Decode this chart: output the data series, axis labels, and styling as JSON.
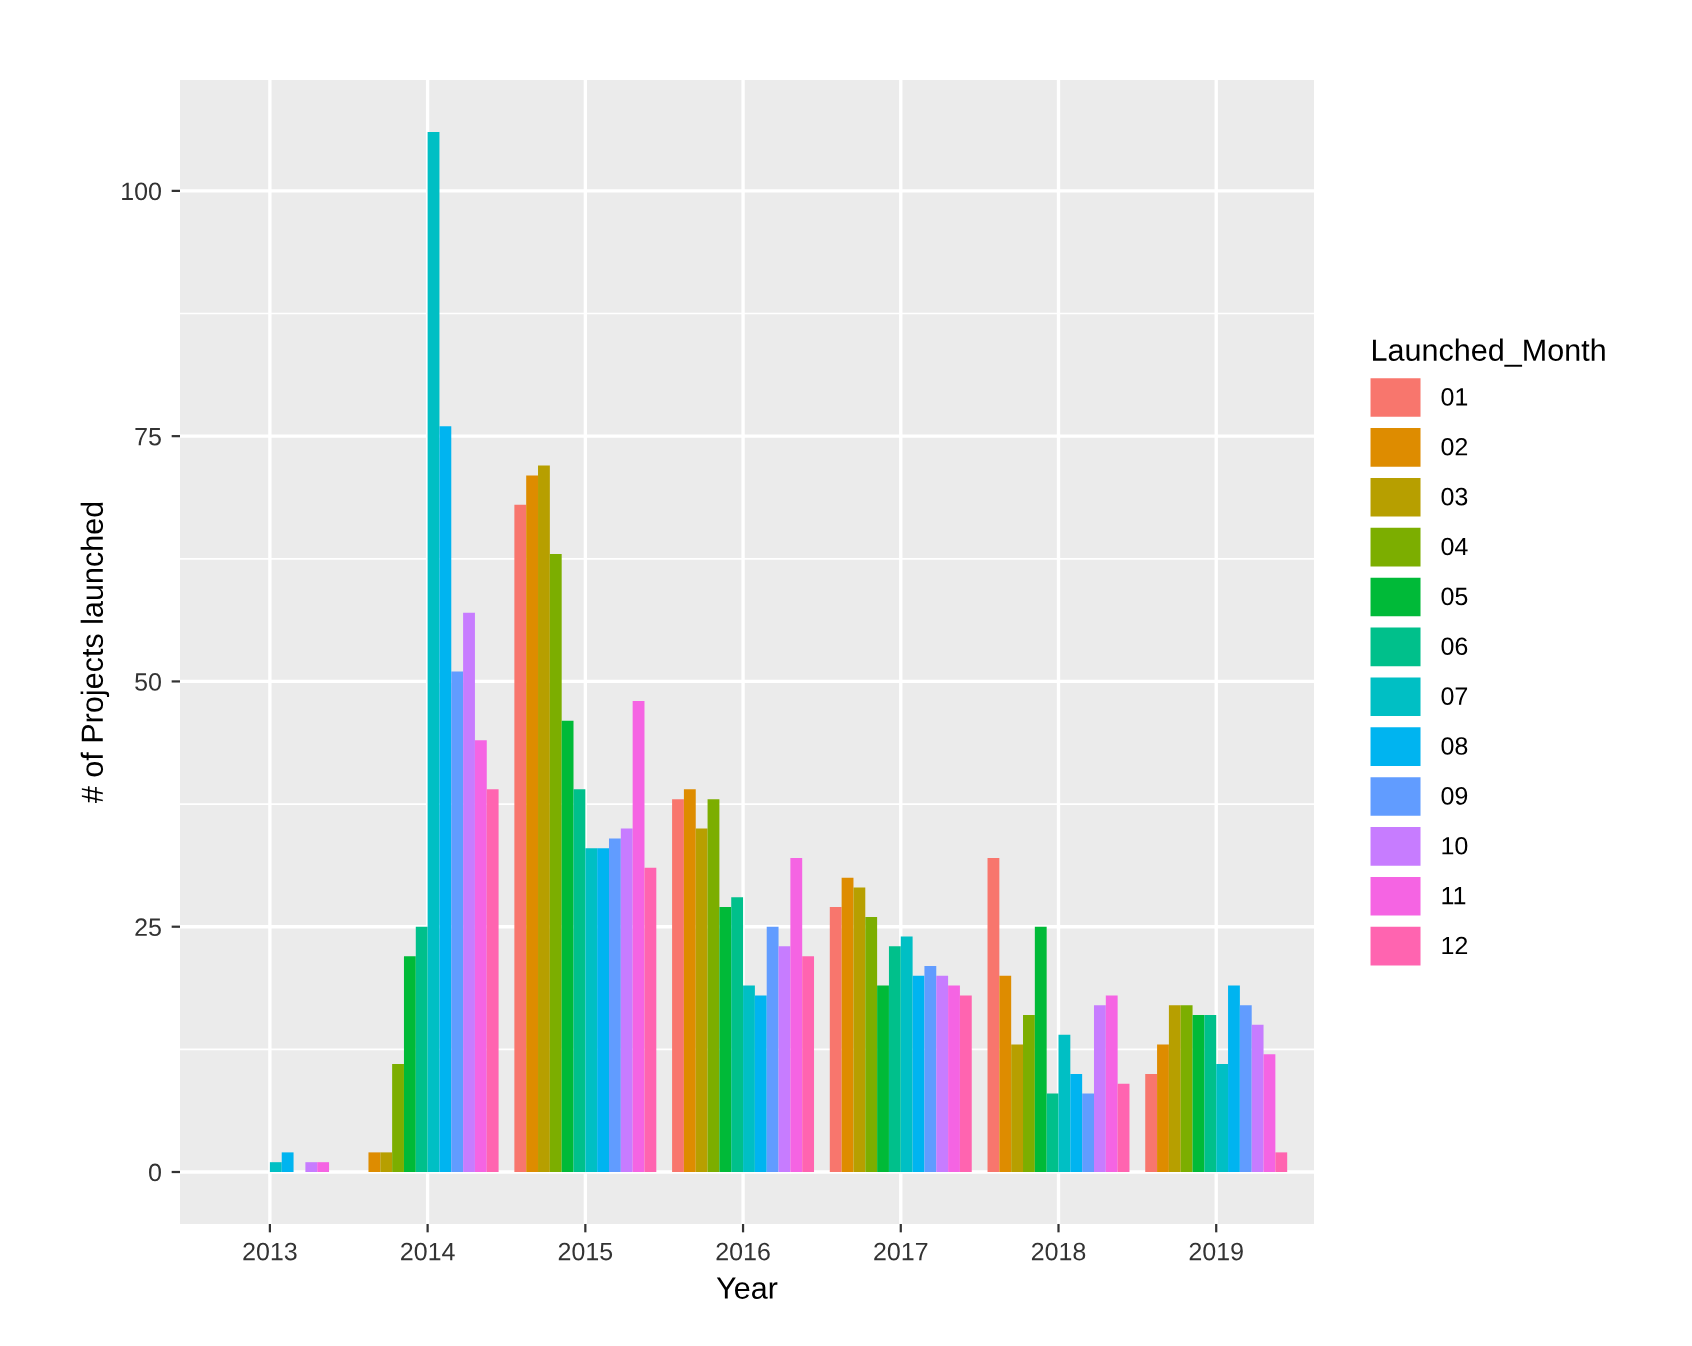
{
  "chart_data": {
    "type": "bar",
    "xlabel": "Year",
    "ylabel": "# of Projects launched",
    "legend_title": "Launched_Month",
    "legend": "right",
    "categories": [
      "2013",
      "2014",
      "2015",
      "2016",
      "2017",
      "2018",
      "2019"
    ],
    "ylim": [
      -5.3,
      111.3
    ],
    "yticks": [
      0,
      25,
      50,
      75,
      100
    ],
    "grid": true,
    "series": [
      {
        "name": "01",
        "color": "#f8766d",
        "values": [
          null,
          null,
          68,
          38,
          27,
          32,
          10
        ]
      },
      {
        "name": "02",
        "color": "#de8c00",
        "values": [
          null,
          2,
          71,
          39,
          30,
          20,
          13
        ]
      },
      {
        "name": "03",
        "color": "#b79f00",
        "values": [
          null,
          2,
          72,
          35,
          29,
          13,
          17
        ]
      },
      {
        "name": "04",
        "color": "#7cae00",
        "values": [
          null,
          11,
          63,
          38,
          26,
          16,
          17
        ]
      },
      {
        "name": "05",
        "color": "#00ba38",
        "values": [
          null,
          22,
          46,
          27,
          19,
          25,
          16
        ]
      },
      {
        "name": "06",
        "color": "#00c08b",
        "values": [
          null,
          25,
          39,
          28,
          23,
          8,
          16
        ]
      },
      {
        "name": "07",
        "color": "#00bfc4",
        "values": [
          1,
          106,
          33,
          19,
          24,
          14,
          11
        ]
      },
      {
        "name": "08",
        "color": "#00b4f0",
        "values": [
          2,
          76,
          33,
          18,
          20,
          10,
          19
        ]
      },
      {
        "name": "09",
        "color": "#619cff",
        "values": [
          null,
          51,
          34,
          25,
          21,
          8,
          17
        ]
      },
      {
        "name": "10",
        "color": "#c77cff",
        "values": [
          1,
          57,
          35,
          23,
          20,
          17,
          15
        ]
      },
      {
        "name": "11",
        "color": "#f564e3",
        "values": [
          1,
          44,
          48,
          32,
          19,
          18,
          12
        ]
      },
      {
        "name": "12",
        "color": "#ff64b0",
        "values": [
          null,
          39,
          31,
          22,
          18,
          9,
          2
        ]
      }
    ]
  }
}
